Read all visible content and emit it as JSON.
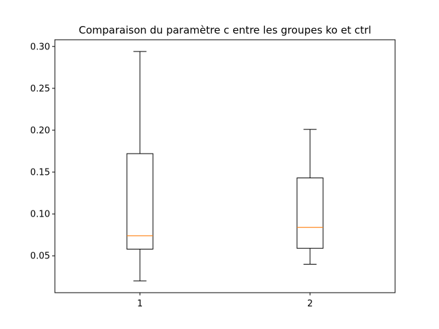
{
  "chart_data": {
    "type": "boxplot",
    "title": "Comparaison du paramètre c entre les groupes ko et ctrl",
    "xlabel": "",
    "ylabel": "",
    "categories": [
      "1",
      "2"
    ],
    "boxes": [
      {
        "category": "1",
        "whisker_low": 0.02,
        "q1": 0.058,
        "median": 0.074,
        "q3": 0.172,
        "whisker_high": 0.294
      },
      {
        "category": "2",
        "whisker_low": 0.04,
        "q1": 0.059,
        "median": 0.084,
        "q3": 0.143,
        "whisker_high": 0.201
      }
    ],
    "yticks": [
      "0.05",
      "0.10",
      "0.15",
      "0.20",
      "0.25",
      "0.30"
    ],
    "ylim": [
      0.006,
      0.308
    ],
    "xlim": [
      0.5,
      2.5
    ],
    "grid": false,
    "colors": {
      "box": "#000000",
      "median": "#ff7f0e"
    }
  }
}
